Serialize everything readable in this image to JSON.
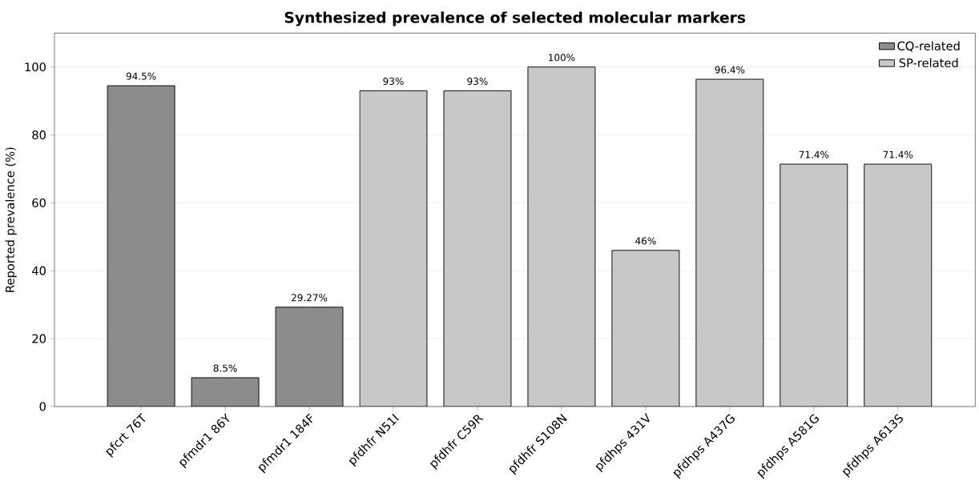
{
  "chart_data": {
    "type": "bar",
    "title": "Synthesized prevalence of selected molecular markers",
    "ylabel": "Reported prevalence (%)",
    "categories": [
      "pfcrt 76T",
      "pfmdr1 86Y",
      "pfmdr1 184F",
      "pfdhfr N51I",
      "pfdhfr C59R",
      "pfdhfr S108N",
      "pfdhps 431V",
      "pfdhps A437G",
      "pfdhps A581G",
      "pfdhps A613S"
    ],
    "series": [
      {
        "name": "CQ-related",
        "color": "#8c8c8c",
        "values": [
          94.5,
          8.5,
          29.27,
          null,
          null,
          null,
          null,
          null,
          null,
          null
        ],
        "value_labels": [
          "94.5%",
          "8.5%",
          "29.27%",
          null,
          null,
          null,
          null,
          null,
          null,
          null
        ]
      },
      {
        "name": "SP-related",
        "color": "#c8c8c8",
        "values": [
          null,
          null,
          null,
          93,
          93,
          100,
          46,
          96.4,
          71.4,
          71.4
        ],
        "value_labels": [
          null,
          null,
          null,
          "93%",
          "93%",
          "100%",
          "46%",
          "96.4%",
          "71.4%",
          "71.4%"
        ]
      }
    ],
    "ylim": [
      0,
      110
    ],
    "yticks": [
      0,
      20,
      40,
      60,
      80,
      100
    ],
    "grid": "y",
    "legend": "top right"
  }
}
